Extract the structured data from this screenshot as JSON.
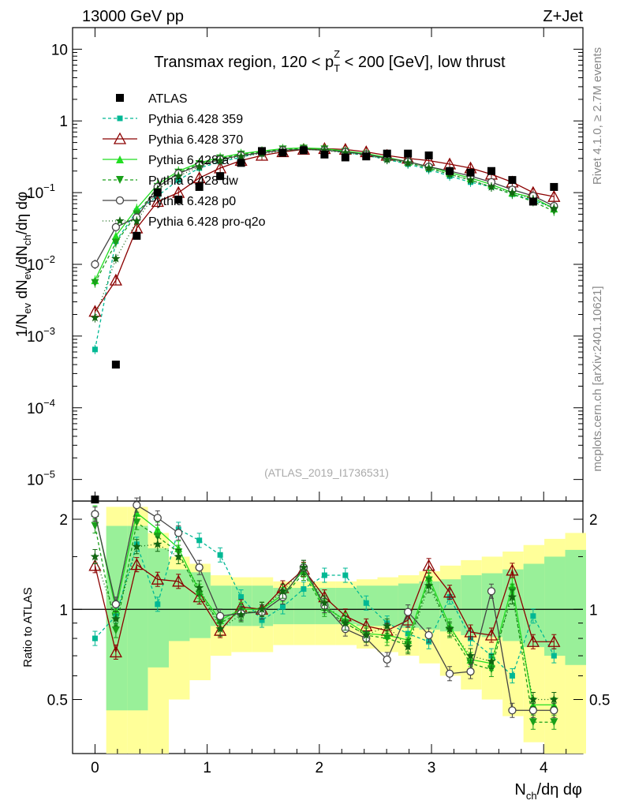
{
  "header": {
    "left": "13000 GeV pp",
    "right": "Z+Jet"
  },
  "side_labels": {
    "rivet": "Rivet 4.1.0, ≥ 2.7M events",
    "mcplots": "mcplots.cern.ch [arXiv:2401.10621]"
  },
  "chart_data": {
    "type": "scatter",
    "title": "Transmax region, 120 < p_T^Z < 200 [GeV], low thrust",
    "title_parts": {
      "pre": "Transmax region, 120 < p",
      "sub": "T",
      "sup": "Z",
      "post": " < 200 [GeV], low thrust"
    },
    "analysis_tag": "(ATLAS_2019_I1736531)",
    "xlabel": "N_ch/dη dφ",
    "ylabel": "1/N_ev dN_ev/dN_ch/dη dφ",
    "ratio_ylabel": "Ratio to ATLAS",
    "yscale": "log",
    "xlim": [
      -0.2,
      4.35
    ],
    "ylim": [
      5e-06,
      20
    ],
    "ratio_ylim": [
      0.33,
      2.3
    ],
    "x_ticks": [
      "0",
      "1",
      "2",
      "3",
      "4"
    ],
    "y_ticks": [
      "10^-5",
      "10^-4",
      "10^-3",
      "10^-2",
      "10^-1",
      "1",
      "10"
    ],
    "ratio_ticks": [
      "0.5",
      "1",
      "2"
    ],
    "x": [
      0,
      0.186,
      0.372,
      0.558,
      0.744,
      0.93,
      1.116,
      1.302,
      1.488,
      1.674,
      1.86,
      2.046,
      2.232,
      2.418,
      2.604,
      2.79,
      2.976,
      3.162,
      3.348,
      3.534,
      3.72,
      3.906,
      4.092
    ],
    "atlas": [
      4.5e-06,
      0.0004,
      0.025,
      0.1,
      0.08,
      0.12,
      0.17,
      0.26,
      0.38,
      0.36,
      0.39,
      0.34,
      0.31,
      0.32,
      0.35,
      0.35,
      0.33,
      0.2,
      0.19,
      0.2,
      0.15,
      0.075,
      0.12
    ],
    "series": [
      {
        "name": "Pythia 6.428 359",
        "color": "#00b894",
        "dash": "4,3",
        "marker": "square",
        "values": [
          0.00065,
          0.021,
          0.055,
          0.09,
          0.15,
          0.22,
          0.27,
          0.31,
          0.37,
          0.4,
          0.41,
          0.4,
          0.36,
          0.33,
          0.29,
          0.25,
          0.21,
          0.17,
          0.14,
          0.12,
          0.095,
          0.078,
          0.062
        ],
        "ratio": [
          0.8,
          0.95,
          1.65,
          1.04,
          1.85,
          1.7,
          1.52,
          1.1,
          0.92,
          1.02,
          1.17,
          1.3,
          1.3,
          1.05,
          0.9,
          0.83,
          0.78,
          1.1,
          0.8,
          0.7,
          0.6,
          0.95,
          0.7
        ]
      },
      {
        "name": "Pythia 6.428 370",
        "color": "#8b0000",
        "dash": "",
        "marker": "triangle-open",
        "values": [
          0.0022,
          0.006,
          0.032,
          0.075,
          0.1,
          0.16,
          0.22,
          0.28,
          0.33,
          0.37,
          0.4,
          0.41,
          0.4,
          0.37,
          0.33,
          0.3,
          0.28,
          0.25,
          0.22,
          0.18,
          0.14,
          0.1,
          0.088
        ],
        "ratio": [
          1.4,
          0.72,
          1.41,
          1.26,
          1.24,
          1.1,
          0.85,
          1.02,
          1.0,
          1.18,
          1.36,
          1.1,
          0.95,
          0.88,
          0.85,
          0.92,
          1.4,
          1.14,
          0.84,
          0.82,
          1.35,
          0.78,
          0.78
        ]
      },
      {
        "name": "Pythia 6.428 a",
        "color": "#22dd22",
        "dash": "",
        "marker": "triangle",
        "values": [
          0.006,
          0.025,
          0.06,
          0.13,
          0.2,
          0.26,
          0.31,
          0.35,
          0.38,
          0.41,
          0.42,
          0.41,
          0.38,
          0.35,
          0.31,
          0.27,
          0.23,
          0.19,
          0.16,
          0.13,
          0.1,
          0.085,
          0.06
        ],
        "ratio": [
          2.1,
          1.0,
          2.1,
          1.85,
          1.6,
          1.15,
          0.92,
          1.0,
          1.0,
          1.12,
          1.35,
          1.02,
          0.92,
          0.83,
          0.82,
          0.79,
          1.28,
          0.88,
          0.68,
          0.66,
          1.2,
          0.48,
          0.48
        ]
      },
      {
        "name": "Pythia 6.428 dw",
        "color": "#1aa01a",
        "dash": "4,3",
        "marker": "triangle-down",
        "values": [
          0.0055,
          0.02,
          0.05,
          0.12,
          0.19,
          0.25,
          0.3,
          0.34,
          0.37,
          0.4,
          0.41,
          0.4,
          0.37,
          0.34,
          0.3,
          0.26,
          0.22,
          0.18,
          0.15,
          0.12,
          0.095,
          0.075,
          0.055
        ],
        "ratio": [
          1.9,
          0.85,
          1.95,
          1.75,
          1.55,
          1.12,
          0.9,
          0.98,
          0.98,
          1.1,
          1.32,
          1.0,
          0.9,
          0.82,
          0.8,
          0.76,
          1.25,
          0.85,
          0.66,
          0.63,
          1.15,
          0.42,
          0.42
        ]
      },
      {
        "name": "Pythia 6.428 p0",
        "color": "#444444",
        "dash": "",
        "marker": "circle-open",
        "values": [
          0.01,
          0.033,
          0.045,
          0.12,
          0.185,
          0.24,
          0.29,
          0.33,
          0.36,
          0.39,
          0.4,
          0.39,
          0.37,
          0.34,
          0.3,
          0.27,
          0.23,
          0.2,
          0.17,
          0.14,
          0.11,
          0.09,
          0.065
        ],
        "ratio": [
          2.08,
          1.04,
          2.23,
          2.02,
          1.8,
          1.38,
          0.95,
          0.97,
          0.98,
          1.1,
          1.38,
          1.03,
          0.86,
          0.8,
          0.68,
          0.98,
          0.82,
          0.61,
          0.62,
          1.15,
          0.46,
          0.46,
          0.46
        ]
      },
      {
        "name": "Pythia 6.428 pro-q2o",
        "color": "#116611",
        "dash": "1,3",
        "marker": "star",
        "values": [
          0.0018,
          0.012,
          0.04,
          0.11,
          0.17,
          0.23,
          0.28,
          0.32,
          0.35,
          0.38,
          0.4,
          0.39,
          0.36,
          0.33,
          0.29,
          0.26,
          0.22,
          0.18,
          0.15,
          0.12,
          0.1,
          0.08,
          0.06
        ],
        "ratio": [
          1.5,
          0.93,
          1.62,
          1.65,
          1.5,
          1.18,
          0.86,
          0.96,
          1.0,
          1.15,
          1.38,
          1.05,
          0.9,
          0.82,
          0.88,
          0.75,
          1.2,
          0.86,
          0.7,
          0.67,
          1.1,
          0.5,
          0.5
        ]
      }
    ],
    "bands": {
      "green_half_width": [
        0.9,
        0.9,
        0.6,
        0.36,
        0.33,
        0.2,
        0.2,
        0.2,
        0.18,
        0.18,
        0.18,
        0.18,
        0.2,
        0.2,
        0.22,
        0.24,
        0.26,
        0.3,
        0.32,
        0.36,
        0.42,
        0.5,
        0.58
      ],
      "yellow_half_width": [
        1.2,
        1.2,
        0.8,
        0.5,
        0.42,
        0.3,
        0.28,
        0.28,
        0.24,
        0.24,
        0.24,
        0.24,
        0.26,
        0.28,
        0.3,
        0.34,
        0.4,
        0.46,
        0.5,
        0.56,
        0.64,
        0.72,
        0.8
      ]
    }
  }
}
